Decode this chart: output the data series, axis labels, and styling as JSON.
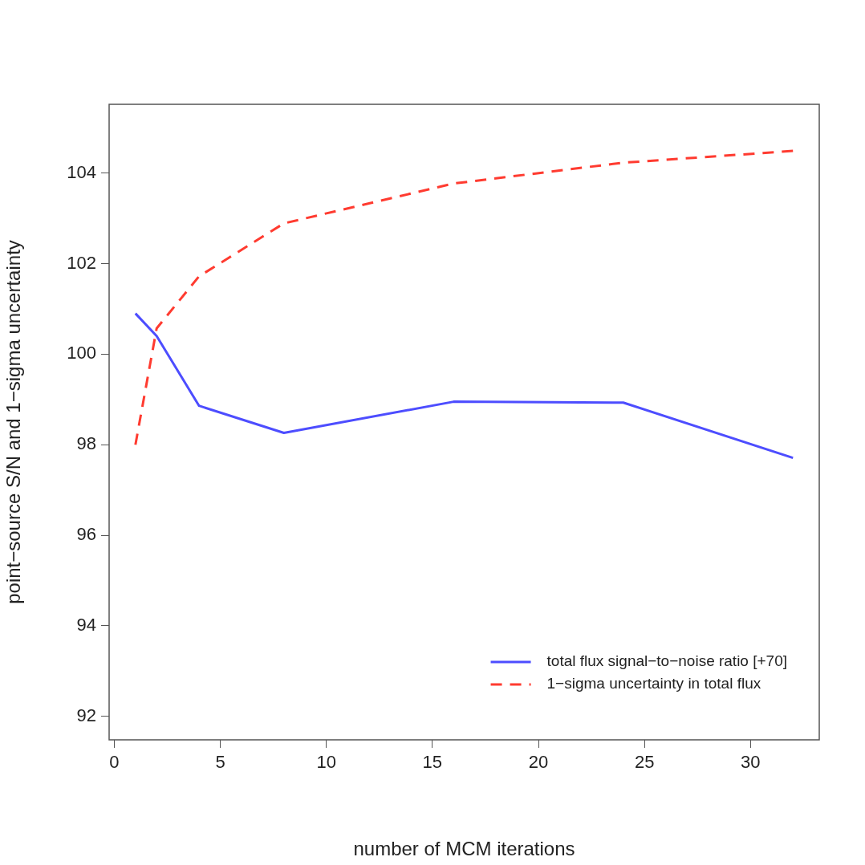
{
  "chart_data": {
    "type": "line",
    "xlabel": "number of MCM iterations",
    "ylabel": "point−source S/N and 1−sigma uncertainty",
    "x": [
      1,
      2,
      4,
      8,
      16,
      24,
      32
    ],
    "series": [
      {
        "name": "total flux signal−to−noise ratio [+70]",
        "color": "#4d4dff",
        "values": [
          100.9,
          100.4,
          98.86,
          98.26,
          98.95,
          98.93,
          97.71
        ],
        "line_style": "solid"
      },
      {
        "name": "1−sigma uncertainty in total flux",
        "color": "#ff3b30",
        "values": [
          98.0,
          100.57,
          101.72,
          102.89,
          103.77,
          104.23,
          104.49
        ],
        "line_style": "dashed"
      }
    ],
    "xlim": [
      -0.24,
      33.24
    ],
    "ylim": [
      91.48,
      105.52
    ],
    "xticks": [
      0,
      5,
      10,
      15,
      20,
      25,
      30
    ],
    "yticks": [
      92,
      94,
      96,
      98,
      100,
      102,
      104
    ],
    "grid": false,
    "legend": "bottom right",
    "marker": "none"
  }
}
